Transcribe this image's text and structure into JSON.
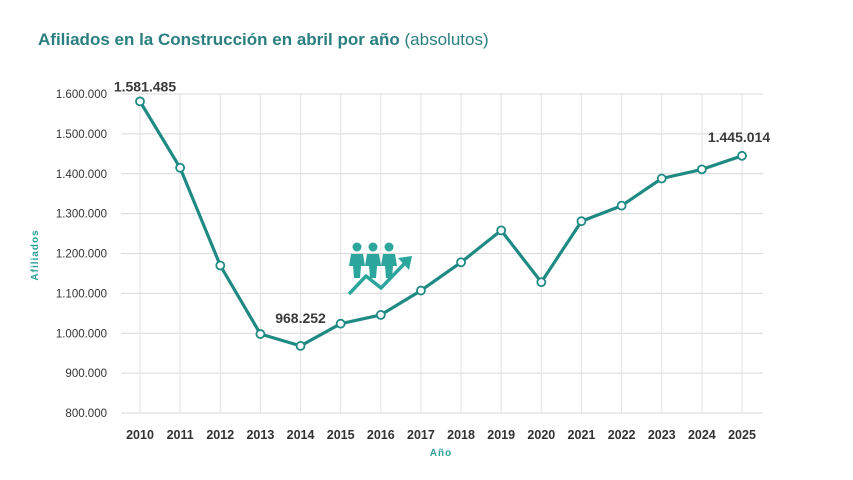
{
  "chart_data": {
    "type": "line",
    "title": "Afiliados en la Construcción en abril por año",
    "subtitle": "(absolutos)",
    "xlabel": "Año",
    "ylabel": "Afiliados",
    "ylim": [
      800000,
      1600000
    ],
    "yticks": [
      800000,
      900000,
      1000000,
      1100000,
      1200000,
      1300000,
      1400000,
      1500000,
      1600000
    ],
    "ytick_labels": [
      "800.000",
      "900.000",
      "1.000.000",
      "1.100.000",
      "1.200.000",
      "1.300.000",
      "1.400.000",
      "1.500.000",
      "1.600.000"
    ],
    "categories": [
      "2010",
      "2011",
      "2012",
      "2013",
      "2014",
      "2015",
      "2016",
      "2017",
      "2018",
      "2019",
      "2020",
      "2021",
      "2022",
      "2023",
      "2024",
      "2025"
    ],
    "series": [
      {
        "values": [
          1581485,
          1415000,
          1170000,
          998000,
          968252,
          1024000,
          1046000,
          1107000,
          1178000,
          1258000,
          1128000,
          1281000,
          1320000,
          1388000,
          1411000,
          1445014
        ],
        "color": "#1f8a84"
      }
    ],
    "annotations": [
      {
        "index": 0,
        "text": "1.581.485"
      },
      {
        "index": 4,
        "text": "968.252"
      },
      {
        "index": 15,
        "text": "1.445.014"
      }
    ],
    "grid": true,
    "icon": "people-growth-icon",
    "icon_color": "#2ca69c"
  }
}
